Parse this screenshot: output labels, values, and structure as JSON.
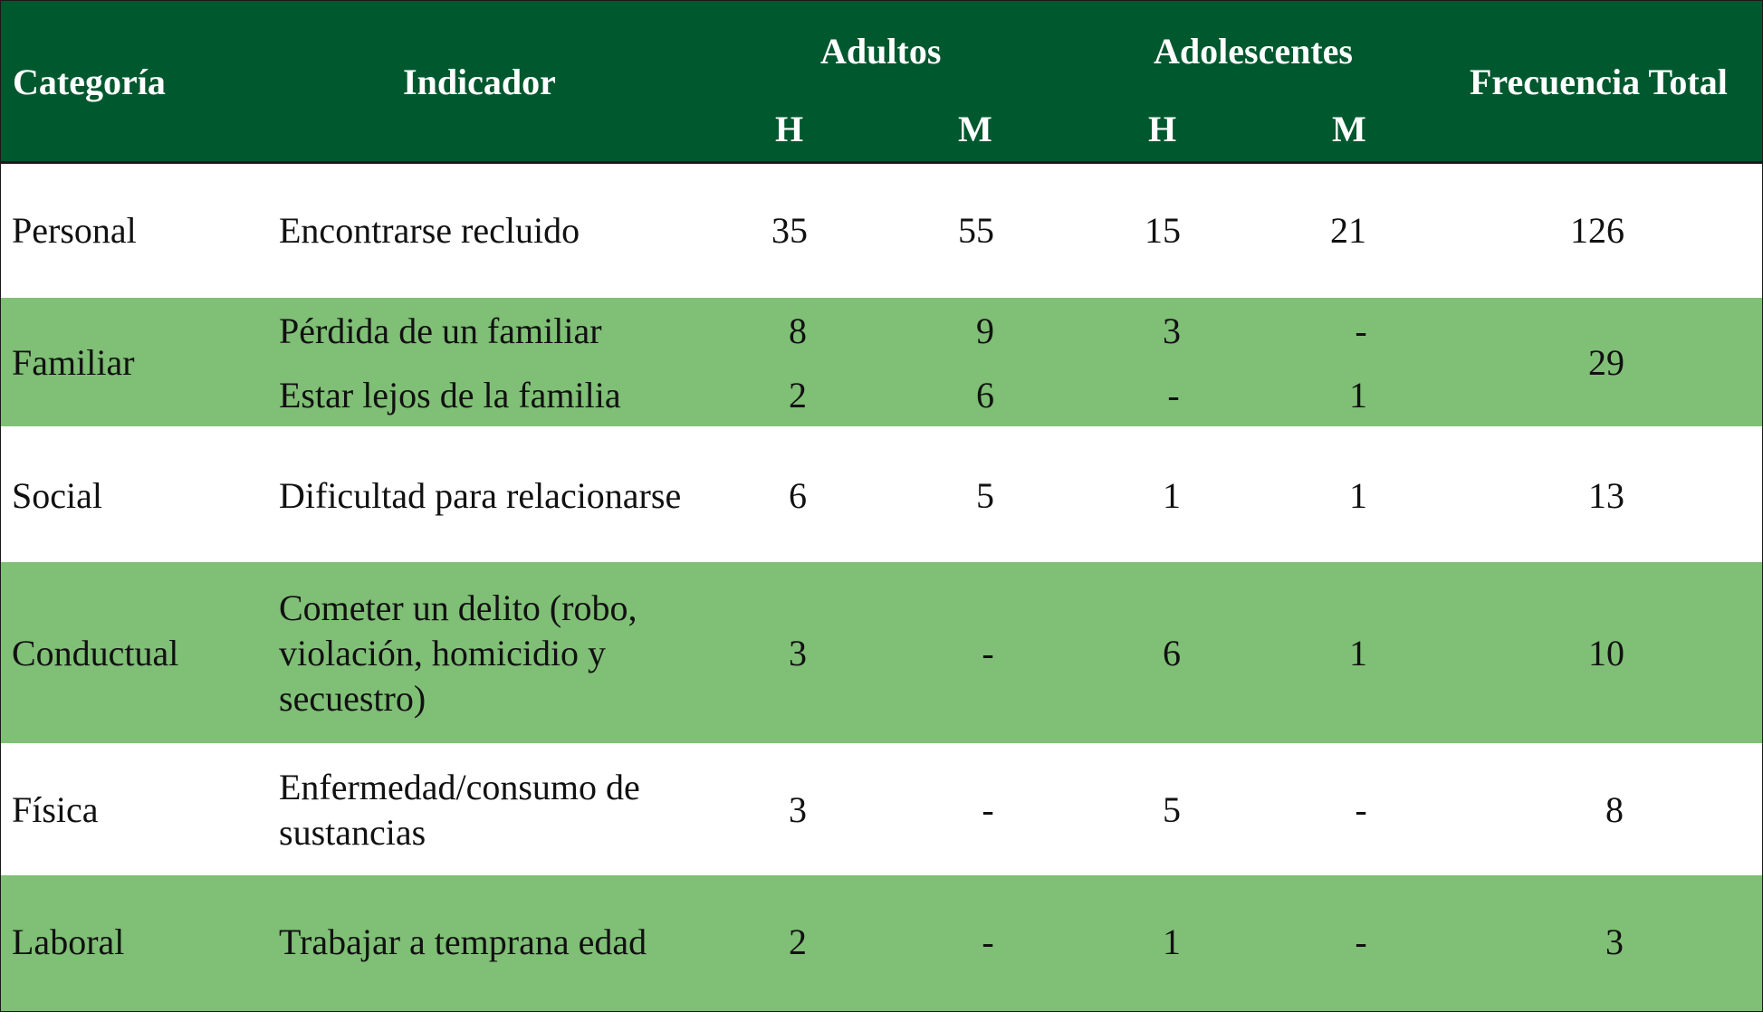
{
  "header": {
    "categoria": "Categoría",
    "indicador": "Indicador",
    "adultos": "Adultos",
    "adolescentes": "Adolescentes",
    "frecuencia_total": "Frecuencia Total",
    "h1": "H",
    "m1": "M",
    "h2": "H",
    "m2": "M"
  },
  "rows": [
    {
      "categoria": "Personal",
      "indicadores": [
        {
          "text": "Encontrarse recluido",
          "adultos_h": "35",
          "adultos_m": "55",
          "adol_h": "15",
          "adol_m": "21"
        }
      ],
      "total": "126"
    },
    {
      "categoria": "Familiar",
      "indicadores": [
        {
          "text": "Pérdida de un familiar",
          "adultos_h": "8",
          "adultos_m": "9",
          "adol_h": "3",
          "adol_m": "-"
        },
        {
          "text": "Estar lejos de la familia",
          "adultos_h": "2",
          "adultos_m": "6",
          "adol_h": "-",
          "adol_m": "1"
        }
      ],
      "total": "29"
    },
    {
      "categoria": "Social",
      "indicadores": [
        {
          "text": "Dificultad para relacionarse",
          "adultos_h": "6",
          "adultos_m": "5",
          "adol_h": "1",
          "adol_m": "1"
        }
      ],
      "total": "13"
    },
    {
      "categoria": "Conductual",
      "indicadores": [
        {
          "text": "Cometer un delito (robo, violación, homicidio y secuestro)",
          "adultos_h": "3",
          "adultos_m": "-",
          "adol_h": "6",
          "adol_m": "1"
        }
      ],
      "total": "10"
    },
    {
      "categoria": "Física",
      "indicadores": [
        {
          "text": "Enfermedad/consumo de sustancias",
          "adultos_h": "3",
          "adultos_m": "-",
          "adol_h": "5",
          "adol_m": "-"
        }
      ],
      "total": "8"
    },
    {
      "categoria": "Laboral",
      "indicadores": [
        {
          "text": "Trabajar a temprana edad",
          "adultos_h": "2",
          "adultos_m": "-",
          "adol_h": "1",
          "adol_m": "-"
        }
      ],
      "total": "3"
    }
  ],
  "colors": {
    "header_bg": "#00582e",
    "alt_row_bg": "#80bf76",
    "row_bg": "#ffffff"
  }
}
